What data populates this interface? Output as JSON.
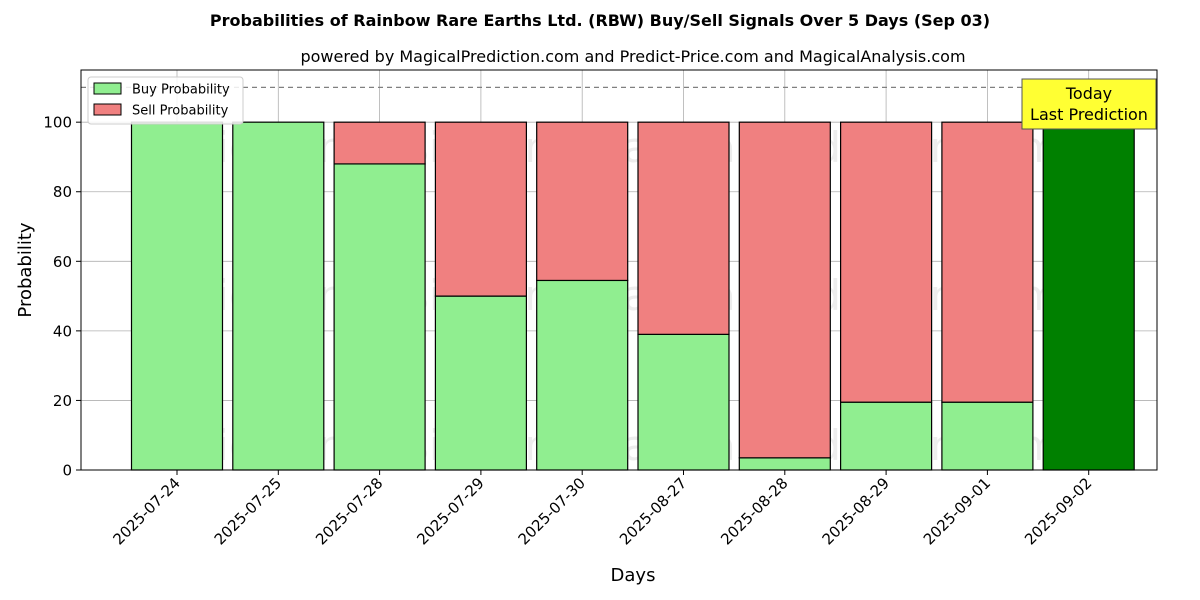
{
  "chart_data": {
    "type": "bar",
    "stacked": true,
    "title": "Probabilities of Rainbow Rare Earths Ltd. (RBW) Buy/Sell Signals Over 5 Days (Sep 03)",
    "subtitle": "powered by MagicalPrediction.com and Predict-Price.com and MagicalAnalysis.com",
    "xlabel": "Days",
    "ylabel": "Probability",
    "ylim": [
      0,
      115
    ],
    "yticks": [
      0,
      20,
      40,
      60,
      80,
      100
    ],
    "reference_line": 110,
    "grid": true,
    "legend_position": "top-left",
    "categories": [
      "2025-07-24",
      "2025-07-25",
      "2025-07-28",
      "2025-07-29",
      "2025-07-30",
      "2025-08-27",
      "2025-08-28",
      "2025-08-29",
      "2025-09-01",
      "2025-09-02"
    ],
    "series": [
      {
        "name": "Buy Probability",
        "color": "#90ee90",
        "values": [
          100,
          100,
          88,
          50,
          54.5,
          39,
          3.5,
          19.5,
          19.5,
          100
        ]
      },
      {
        "name": "Sell Probability",
        "color": "#f08080",
        "values": [
          0,
          0,
          12,
          50,
          45.5,
          61,
          96.5,
          80.5,
          80.5,
          0
        ]
      }
    ],
    "highlight_index": 9,
    "highlight_color": "#008000",
    "annotation": {
      "lines": [
        "Today",
        "Last Prediction"
      ],
      "background": "#ffff33"
    },
    "watermarks": [
      "MagicalAnalysis.com",
      "MagicalPrediction.com"
    ]
  }
}
